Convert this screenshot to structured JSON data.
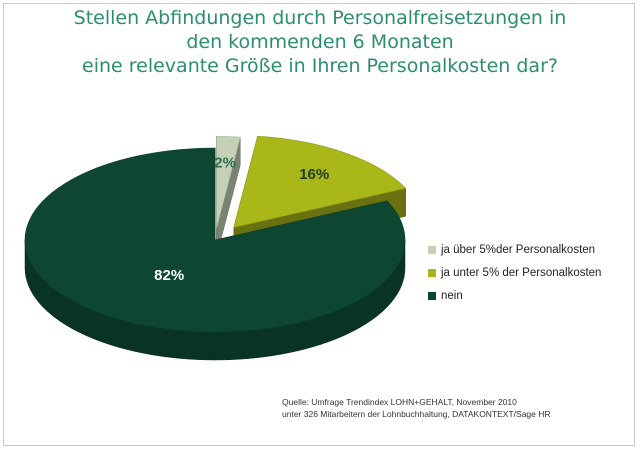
{
  "title": {
    "line1": "Stellen Abfindungen durch Personalfreisetzungen in",
    "line2": "den kommenden 6 Monaten",
    "line3": "eine relevante Größe in Ihren Personalkosten dar?"
  },
  "legend": [
    {
      "label": "ja über 5%der Personalkosten",
      "color": "#c5d1b7"
    },
    {
      "label": "ja unter 5% der Personalkosten",
      "color": "#a9b719"
    },
    {
      "label": "nein",
      "color": "#0d4731"
    }
  ],
  "source": {
    "line1": "Quelle: Umfrage Trendindex LOHN+GEHALT, November 2010",
    "line2": "unter 326 Mitarbeitern der Lohnbuchhaltung, DATAKONTEXT/Sage HR"
  },
  "chart_data": {
    "type": "pie",
    "style": "3d-exploded",
    "title": "Stellen Abfindungen durch Personalfreisetzungen in den kommenden 6 Monaten eine relevante Größe in Ihren Personalkosten dar?",
    "categories": [
      "ja über 5%der Personalkosten",
      "ja unter 5% der Personalkosten",
      "nein"
    ],
    "values": [
      2,
      16,
      82
    ],
    "labels": [
      "2%",
      "16%",
      "82%"
    ],
    "colors": [
      "#c5d1b7",
      "#a9b719",
      "#0d4731"
    ],
    "legend_position": "right"
  }
}
